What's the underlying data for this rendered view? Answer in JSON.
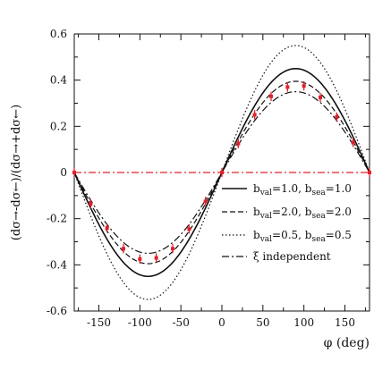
{
  "chart_data": {
    "type": "line",
    "xlabel": "φ (deg)",
    "ylabel": "(dσ→-dσ←)/(dσ→+dσ←)",
    "xlim": [
      -180,
      180
    ],
    "ylim": [
      -0.6,
      0.6
    ],
    "x_ticks": [
      -150,
      -100,
      -50,
      0,
      50,
      100,
      150
    ],
    "y_ticks": [
      -0.6,
      -0.4,
      -0.2,
      0,
      0.2,
      0.4,
      0.6
    ],
    "y_tick_labels": [
      "-0.6",
      "-0.4",
      "-0.2",
      "0",
      "0.2",
      "0.4",
      "0.6"
    ],
    "grid": false,
    "legend_placement": "center-right",
    "series": [
      {
        "name": "bval=1.0, bsea=1.0",
        "legend_main": "b",
        "legend_sub1": "val",
        "legend_mid": "=1.0, b",
        "legend_sub2": "sea",
        "legend_end": "=1.0",
        "style": "solid",
        "amplitude": 0.45,
        "x": [
          -180,
          -165,
          -150,
          -135,
          -120,
          -105,
          -90,
          -75,
          -60,
          -45,
          -30,
          -15,
          0,
          15,
          30,
          45,
          60,
          75,
          90,
          105,
          120,
          135,
          150,
          165,
          180
        ],
        "y": [
          0,
          -0.116,
          -0.225,
          -0.318,
          -0.39,
          -0.435,
          -0.45,
          -0.435,
          -0.39,
          -0.318,
          -0.225,
          -0.116,
          0,
          0.116,
          0.225,
          0.318,
          0.39,
          0.435,
          0.45,
          0.435,
          0.39,
          0.318,
          0.225,
          0.116,
          0
        ]
      },
      {
        "name": "bval=2.0, bsea=2.0",
        "legend_main": "b",
        "legend_sub1": "val",
        "legend_mid": "=2.0, b",
        "legend_sub2": "sea",
        "legend_end": "=2.0",
        "style": "dashed",
        "amplitude": 0.395,
        "x": [
          -180,
          -165,
          -150,
          -135,
          -120,
          -105,
          -90,
          -75,
          -60,
          -45,
          -30,
          -15,
          0,
          15,
          30,
          45,
          60,
          75,
          90,
          105,
          120,
          135,
          150,
          165,
          180
        ],
        "y": [
          0,
          -0.102,
          -0.198,
          -0.279,
          -0.342,
          -0.382,
          -0.395,
          -0.382,
          -0.342,
          -0.279,
          -0.198,
          -0.102,
          0,
          0.102,
          0.198,
          0.279,
          0.342,
          0.382,
          0.395,
          0.382,
          0.342,
          0.279,
          0.198,
          0.102,
          0
        ]
      },
      {
        "name": "bval=0.5, bsea=0.5",
        "legend_main": "b",
        "legend_sub1": "val",
        "legend_mid": "=0.5, b",
        "legend_sub2": "sea",
        "legend_end": "=0.5",
        "style": "dotted",
        "amplitude": 0.55,
        "x": [
          -180,
          -165,
          -150,
          -135,
          -120,
          -105,
          -90,
          -75,
          -60,
          -45,
          -30,
          -15,
          0,
          15,
          30,
          45,
          60,
          75,
          90,
          105,
          120,
          135,
          150,
          165,
          180
        ],
        "y": [
          0,
          -0.142,
          -0.275,
          -0.389,
          -0.476,
          -0.531,
          -0.55,
          -0.531,
          -0.476,
          -0.389,
          -0.275,
          -0.142,
          0,
          0.142,
          0.275,
          0.389,
          0.476,
          0.531,
          0.55,
          0.531,
          0.476,
          0.389,
          0.275,
          0.142,
          0
        ]
      },
      {
        "name": "ξ independent",
        "legend_main": "ξ independent",
        "legend_sub1": "",
        "legend_mid": "",
        "legend_sub2": "",
        "legend_end": "",
        "style": "dashdot",
        "amplitude": 0.35,
        "x": [
          -180,
          -165,
          -150,
          -135,
          -120,
          -105,
          -90,
          -75,
          -60,
          -45,
          -30,
          -15,
          0,
          15,
          30,
          45,
          60,
          75,
          90,
          105,
          120,
          135,
          150,
          165,
          180
        ],
        "y": [
          0,
          -0.091,
          -0.175,
          -0.247,
          -0.303,
          -0.338,
          -0.35,
          -0.338,
          -0.303,
          -0.247,
          -0.175,
          -0.091,
          0,
          0.091,
          0.175,
          0.247,
          0.303,
          0.338,
          0.35,
          0.338,
          0.303,
          0.247,
          0.175,
          0.091,
          0
        ]
      }
    ],
    "data_points": {
      "color": "#e0202a",
      "x": [
        -180,
        -160,
        -140,
        -120,
        -100,
        -80,
        -60,
        -40,
        -20,
        0,
        20,
        40,
        60,
        80,
        100,
        120,
        140,
        160,
        180
      ],
      "y": [
        0,
        -0.135,
        -0.24,
        -0.33,
        -0.375,
        -0.37,
        -0.33,
        -0.245,
        -0.125,
        0,
        0.125,
        0.25,
        0.33,
        0.37,
        0.375,
        0.325,
        0.24,
        0.13,
        0
      ],
      "err": [
        0.02,
        0.02,
        0.02,
        0.02,
        0.02,
        0.02,
        0.02,
        0.02,
        0.02,
        0.02,
        0.02,
        0.02,
        0.02,
        0.02,
        0.02,
        0.02,
        0.02,
        0.02,
        0.02
      ]
    },
    "zero_line_color": "#e0202a"
  }
}
